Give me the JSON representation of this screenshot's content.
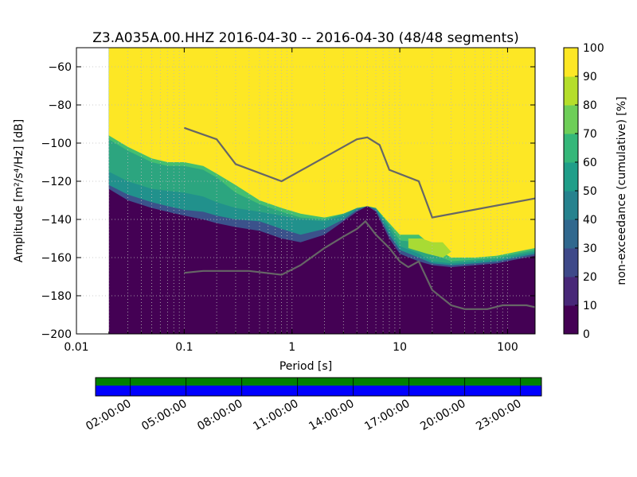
{
  "chart_data": [
    {
      "type": "heatmap",
      "title": "Z3.A035A.00.HHZ   2016-04-30 -- 2016-04-30  (48/48 segments)",
      "xlabel": "Period [s]",
      "ylabel": "Amplitude [m²/s⁴/Hz] [dB]",
      "x_scale": "log",
      "xlim": [
        0.01,
        180
      ],
      "ylim": [
        -200,
        -50
      ],
      "x_ticks": [
        0.01,
        0.1,
        1,
        10,
        100
      ],
      "x_tick_labels": [
        "0.01",
        "0.1",
        "1",
        "10",
        "100"
      ],
      "y_ticks": [
        -60,
        -80,
        -100,
        -120,
        -140,
        -160,
        -180,
        -200
      ],
      "y_tick_labels": [
        "−60",
        "−80",
        "−100",
        "−120",
        "−140",
        "−160",
        "−180",
        "−200"
      ],
      "grid": true,
      "colorbar": {
        "label": "non-exceedance (cumulative) [%]",
        "range": [
          0,
          100
        ],
        "ticks": [
          100,
          90,
          80,
          70,
          60,
          50,
          40,
          30,
          20,
          10,
          0
        ],
        "tick_labels": [
          "100",
          "90",
          "80",
          "70",
          "60",
          "50",
          "40",
          "30",
          "20",
          "10",
          "0"
        ],
        "colormap": "viridis",
        "levels": 10
      },
      "data_period_start": 0.02,
      "band_edges": {
        "period": [
          0.02,
          0.03,
          0.05,
          0.07,
          0.1,
          0.15,
          0.2,
          0.3,
          0.5,
          0.8,
          1.2,
          2,
          3,
          4,
          5,
          6,
          8,
          10,
          15,
          20,
          30,
          50,
          80,
          120,
          180
        ],
        "p0_10": [
          -126,
          -133,
          -136,
          -138,
          -140,
          -142,
          -144,
          -146,
          -148,
          -152,
          -155,
          -150,
          -143,
          -137,
          -134,
          -138,
          -152,
          -160,
          -163,
          -165,
          -166,
          -165,
          -164,
          -162,
          -160
        ],
        "p10_30": [
          -124,
          -130,
          -134,
          -136,
          -138,
          -140,
          -142,
          -144,
          -146,
          -150,
          -152,
          -148,
          -141,
          -136,
          -133,
          -136,
          -150,
          -158,
          -162,
          -164,
          -165,
          -164,
          -163,
          -161,
          -159
        ],
        "p30_50": [
          -122,
          -127,
          -131,
          -133,
          -135,
          -136,
          -138,
          -140,
          -141,
          -145,
          -148,
          -145,
          -140,
          -135,
          -133,
          -135,
          -148,
          -156,
          -160,
          -163,
          -164,
          -163,
          -162,
          -160,
          -158
        ],
        "p50_70": [
          -115,
          -120,
          -124,
          -125,
          -126,
          -128,
          -131,
          -134,
          -136,
          -138,
          -140,
          -141,
          -138,
          -134,
          -133,
          -134,
          -145,
          -154,
          -158,
          -162,
          -163,
          -162,
          -161,
          -159,
          -157
        ],
        "p70_90": [
          -98,
          -104,
          -110,
          -112,
          -112,
          -114,
          -118,
          -126,
          -132,
          -136,
          -139,
          -140,
          -137,
          -134,
          -133,
          -134,
          -143,
          -151,
          -152,
          -158,
          -162,
          -161,
          -160,
          -158,
          -156
        ],
        "p90_100": [
          -96,
          -102,
          -108,
          -110,
          -110,
          -112,
          -116,
          -122,
          -130,
          -134,
          -137,
          -139,
          -137,
          -134,
          -133,
          -134,
          -142,
          -148,
          -148,
          -154,
          -160,
          -160,
          -159,
          -157,
          -155
        ]
      },
      "reference_curves": [
        {
          "period": [
            0.1,
            0.2,
            0.3,
            0.8,
            4,
            5,
            6.5,
            8,
            15,
            20,
            180
          ],
          "db": [
            -92,
            -98,
            -111,
            -120,
            -98,
            -97,
            -101,
            -114,
            -120,
            -139,
            -129
          ]
        },
        {
          "period": [
            0.1,
            0.15,
            0.4,
            0.8,
            1.2,
            2,
            3,
            4,
            4.8,
            6,
            8,
            10,
            12,
            15,
            20,
            30,
            40,
            65,
            90,
            150,
            180
          ],
          "db": [
            -168,
            -167,
            -167,
            -169,
            -164,
            -155,
            -149,
            -145,
            -141,
            -148,
            -155,
            -162,
            -165,
            -162,
            -177,
            -185,
            -187,
            -187,
            -185,
            -185,
            -186
          ]
        }
      ]
    },
    {
      "type": "timeline",
      "time_tick_labels": [
        "02:00:00",
        "05:00:00",
        "08:00:00",
        "11:00:00",
        "14:00:00",
        "17:00:00",
        "20:00:00",
        "23:00:00"
      ],
      "start_hours": 0,
      "end_hours": 24,
      "tick_hours": [
        2,
        5,
        8,
        11,
        14,
        17,
        20,
        23
      ],
      "colors": {
        "available": "#008000",
        "used": "#0000ff"
      }
    }
  ]
}
